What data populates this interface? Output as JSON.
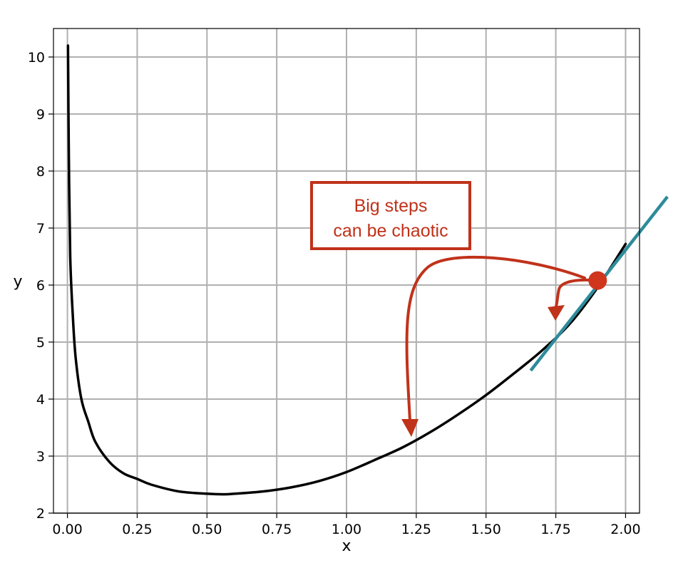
{
  "chart_data": {
    "type": "line",
    "title": "",
    "xlabel": "x",
    "ylabel": "y",
    "xlim": [
      -0.05,
      2.05
    ],
    "ylim": [
      2,
      10.5
    ],
    "grid": true,
    "xticks": [
      0.0,
      0.25,
      0.5,
      0.75,
      1.0,
      1.25,
      1.5,
      1.75,
      2.0
    ],
    "xtick_labels": [
      "0.00",
      "0.25",
      "0.50",
      "0.75",
      "1.00",
      "1.25",
      "1.50",
      "1.75",
      "2.00"
    ],
    "yticks": [
      2,
      3,
      4,
      5,
      6,
      7,
      8,
      9,
      10
    ],
    "ytick_labels": [
      "2",
      "3",
      "4",
      "5",
      "6",
      "7",
      "8",
      "9",
      "10"
    ],
    "series": [
      {
        "color": "#000000",
        "x": [
          0.002,
          0.005,
          0.01,
          0.02,
          0.03,
          0.05,
          0.075,
          0.1,
          0.15,
          0.2,
          0.25,
          0.3,
          0.4,
          0.5,
          0.56,
          0.6,
          0.7,
          0.8,
          0.9,
          1.0,
          1.1,
          1.2,
          1.3,
          1.4,
          1.5,
          1.6,
          1.7,
          1.8,
          1.9,
          2.0
        ],
        "y": [
          10.2,
          8.3,
          6.5,
          5.4,
          4.7,
          4.0,
          3.6,
          3.25,
          2.9,
          2.7,
          2.6,
          2.5,
          2.38,
          2.34,
          2.33,
          2.34,
          2.38,
          2.45,
          2.56,
          2.72,
          2.93,
          3.15,
          3.42,
          3.73,
          4.07,
          4.45,
          4.85,
          5.32,
          5.96,
          6.72
        ]
      }
    ],
    "annotations": {
      "text_lines": [
        "Big steps",
        "can be chaotic"
      ],
      "point": {
        "x": 1.9,
        "y": 6.08,
        "color": "#d0351e"
      },
      "tangent": {
        "x": [
          1.66,
          2.15
        ],
        "y": [
          4.5,
          7.55
        ],
        "color": "#2e8b9a"
      },
      "arrow_color": "#c0321a"
    }
  }
}
